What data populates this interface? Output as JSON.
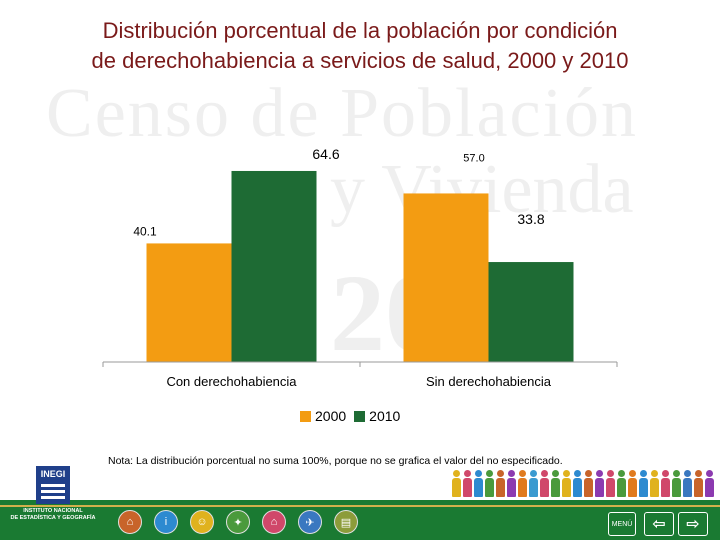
{
  "title": {
    "line1": "Distribución porcentual de la población por condición",
    "line2": "de derechohabiencia a servicios de salud, 2000 y 2010"
  },
  "watermark": {
    "line1": "Censo de Población",
    "line2": "y Vivienda",
    "line3": "2010"
  },
  "chart_data": {
    "type": "bar",
    "categories": [
      "Con derechohabiencia",
      "Sin derechohabiencia"
    ],
    "series": [
      {
        "name": "2000",
        "values": [
          40.1,
          57.0
        ],
        "labels": [
          "40.1",
          "57.0"
        ],
        "color": "#f39c12"
      },
      {
        "name": "2010",
        "values": [
          64.6,
          33.8
        ],
        "labels": [
          "64.6",
          "33.8"
        ],
        "color": "#1e6b34"
      }
    ],
    "ylim": [
      0,
      70
    ],
    "grid": false,
    "legend": "bottom"
  },
  "legend": {
    "item1": "2000",
    "item2": "2010"
  },
  "note": "Nota: La distribución porcentual no suma 100%, porque no se grafica el valor del no especificado.",
  "footer": {
    "logo_text": "INEGI",
    "institute_line1": "INSTITUTO NACIONAL",
    "institute_line2": "DE ESTADÍSTICA Y GEOGRAFÍA",
    "menu_label": "MENÚ",
    "back_symbol": "⇦",
    "forward_symbol": "⇨",
    "band_color": "#1a7a32"
  },
  "nav_icons": [
    "home-icon",
    "info-icon",
    "people-icon",
    "housing-icon",
    "house-icon",
    "map-icon",
    "document-icon"
  ]
}
